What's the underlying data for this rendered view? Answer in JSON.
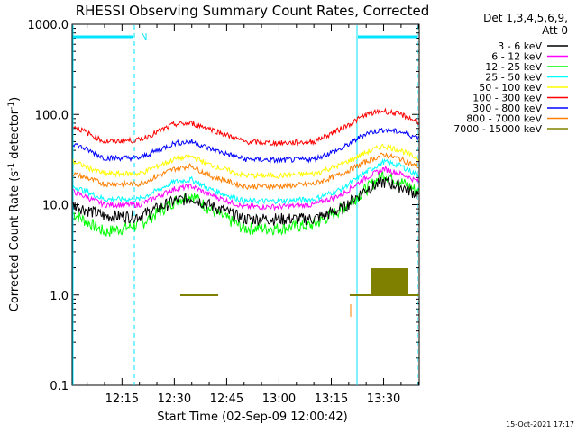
{
  "chart_data": {
    "type": "line",
    "title": "RHESSI Observing Summary Count Rates, Corrected",
    "xlabel": "Start Time (02-Sep-09 12:00:42)",
    "ylabel_main": "Corrected Count Rate (s",
    "ylabel_sup1": "-1",
    "ylabel_mid": " detector",
    "ylabel_sup2": "-1",
    "ylabel_end": ")",
    "yscale": "log",
    "ylim": [
      0.1,
      1000
    ],
    "xlim_minutes": [
      0.7,
      100.2
    ],
    "yticks": [
      {
        "value": 1000,
        "label": "1000.0"
      },
      {
        "value": 100,
        "label": "100.0"
      },
      {
        "value": 10,
        "label": "10.0"
      },
      {
        "value": 1,
        "label": "1.0"
      },
      {
        "value": 0.1,
        "label": "0.1"
      }
    ],
    "xticks": [
      {
        "minute": 15,
        "label": "12:15"
      },
      {
        "minute": 30,
        "label": "12:30"
      },
      {
        "minute": 45,
        "label": "12:45"
      },
      {
        "minute": 60,
        "label": "13:00"
      },
      {
        "minute": 75,
        "label": "13:15"
      },
      {
        "minute": 90,
        "label": "13:30"
      }
    ],
    "legend": {
      "position": "top-right",
      "header1": "Det 1,3,4,5,6,9,",
      "header2": "Att 0"
    },
    "series": [
      {
        "name": "3 - 6 keV",
        "color": "#000000",
        "x": [
          1,
          10,
          20,
          30,
          35,
          40,
          50,
          60,
          70,
          78,
          85,
          90,
          95,
          100
        ],
        "y": [
          10,
          7.5,
          7.5,
          11,
          12,
          10,
          7,
          7,
          7,
          9,
          15,
          18,
          16,
          13
        ]
      },
      {
        "name": "6 - 12 keV",
        "color": "#ff00ff",
        "x": [
          1,
          10,
          20,
          30,
          35,
          40,
          50,
          60,
          70,
          78,
          85,
          90,
          95,
          100
        ],
        "y": [
          14,
          10,
          10,
          15,
          16,
          13,
          9.5,
          9.5,
          10,
          13,
          20,
          25,
          22,
          18
        ]
      },
      {
        "name": "12 - 25 keV",
        "color": "#00ff00",
        "x": [
          1,
          10,
          20,
          30,
          35,
          40,
          50,
          60,
          70,
          78,
          85,
          90,
          95,
          100
        ],
        "y": [
          8,
          5,
          6,
          11,
          13,
          9,
          5.5,
          5.5,
          6,
          9,
          15,
          22,
          18,
          14
        ]
      },
      {
        "name": "25 - 50 keV",
        "color": "#00ffff",
        "x": [
          1,
          10,
          20,
          30,
          35,
          40,
          50,
          60,
          70,
          78,
          85,
          90,
          95,
          100
        ],
        "y": [
          16,
          11.5,
          11.5,
          18,
          19,
          15,
          11,
          11,
          11.5,
          15,
          23,
          30,
          27,
          21
        ]
      },
      {
        "name": "50 - 100 keV",
        "color": "#ffff00",
        "x": [
          1,
          10,
          20,
          30,
          35,
          40,
          50,
          60,
          70,
          78,
          85,
          90,
          95,
          100
        ],
        "y": [
          30,
          22,
          22,
          32,
          34,
          28,
          21,
          21,
          22,
          28,
          38,
          45,
          40,
          32
        ]
      },
      {
        "name": "100 - 300 keV",
        "color": "#ff0000",
        "x": [
          1,
          10,
          20,
          30,
          35,
          40,
          50,
          60,
          70,
          78,
          85,
          90,
          95,
          100
        ],
        "y": [
          75,
          50,
          52,
          78,
          80,
          70,
          50,
          48,
          50,
          70,
          100,
          110,
          100,
          82
        ]
      },
      {
        "name": "300 - 800 keV",
        "color": "#0000ff",
        "x": [
          1,
          10,
          20,
          30,
          35,
          40,
          50,
          60,
          70,
          78,
          85,
          90,
          95,
          100
        ],
        "y": [
          48,
          33,
          33,
          48,
          50,
          42,
          32,
          31,
          32,
          42,
          62,
          68,
          64,
          55
        ]
      },
      {
        "name": "800 - 7000 keV",
        "color": "#ff7f00",
        "x": [
          1,
          10,
          20,
          30,
          35,
          40,
          50,
          60,
          70,
          78,
          85,
          90,
          95,
          100
        ],
        "y": [
          22,
          17,
          17,
          25,
          27,
          21,
          16,
          16,
          17,
          22,
          30,
          36,
          32,
          26
        ]
      },
      {
        "name": "7000 - 15000 keV",
        "color": "#808000",
        "x": [],
        "y": []
      }
    ],
    "annotations": [
      {
        "text": "N",
        "minute": 16,
        "value": 700
      }
    ],
    "footer_date": "15-Oct-2021 17:17"
  }
}
